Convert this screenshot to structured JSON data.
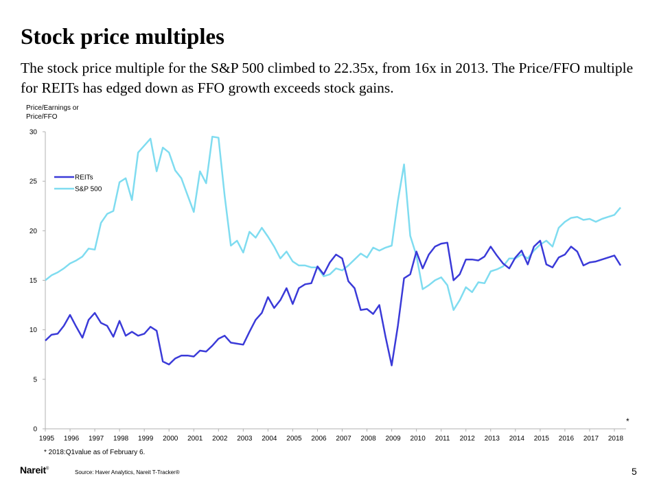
{
  "slide": {
    "title": "Stock price multiples",
    "subtitle": "The stock price multiple for the S&P 500 climbed to 22.35x, from 16x in 2013. The Price/FFO multiple for REITs has edged down as FFO growth exceeds stock gains.",
    "footnote": "* 2018:Q1value as of February 6.",
    "asterisk": "*",
    "logo": "Nareit",
    "logo_mark": "®",
    "source": "Source:  Haver Analytics, Nareit T-Tracker®",
    "page_number": "5"
  },
  "chart_data": {
    "type": "line",
    "ylabel": "Price/Earnings or Price/FFO",
    "ylim": [
      0,
      30
    ],
    "yticks": [
      0,
      5,
      10,
      15,
      20,
      25,
      30
    ],
    "xlim": [
      1995,
      2018.25
    ],
    "xticks": [
      1995,
      1996,
      1997,
      1998,
      1999,
      2000,
      2001,
      2002,
      2003,
      2004,
      2005,
      2006,
      2007,
      2008,
      2009,
      2010,
      2011,
      2012,
      2013,
      2014,
      2015,
      2016,
      2017,
      2018
    ],
    "legend_position": "top-left",
    "grid": false,
    "series": [
      {
        "name": "REITs",
        "color": "#3a3ad8",
        "points": [
          [
            1995,
            8.9
          ],
          [
            1995.25,
            9.5
          ],
          [
            1995.5,
            9.6
          ],
          [
            1995.75,
            10.4
          ],
          [
            1996,
            11.5
          ],
          [
            1996.25,
            10.3
          ],
          [
            1996.5,
            9.2
          ],
          [
            1996.75,
            11.0
          ],
          [
            1997,
            11.7
          ],
          [
            1997.25,
            10.7
          ],
          [
            1997.5,
            10.4
          ],
          [
            1997.75,
            9.3
          ],
          [
            1998,
            10.9
          ],
          [
            1998.25,
            9.4
          ],
          [
            1998.5,
            9.8
          ],
          [
            1998.75,
            9.4
          ],
          [
            1999,
            9.6
          ],
          [
            1999.25,
            10.3
          ],
          [
            1999.5,
            9.9
          ],
          [
            1999.75,
            6.8
          ],
          [
            2000,
            6.5
          ],
          [
            2000.25,
            7.1
          ],
          [
            2000.5,
            7.4
          ],
          [
            2000.75,
            7.4
          ],
          [
            2001,
            7.3
          ],
          [
            2001.25,
            7.9
          ],
          [
            2001.5,
            7.8
          ],
          [
            2001.75,
            8.4
          ],
          [
            2002,
            9.1
          ],
          [
            2002.25,
            9.4
          ],
          [
            2002.5,
            8.7
          ],
          [
            2002.75,
            8.6
          ],
          [
            2003,
            8.5
          ],
          [
            2003.25,
            9.8
          ],
          [
            2003.5,
            11.0
          ],
          [
            2003.75,
            11.7
          ],
          [
            2004,
            13.3
          ],
          [
            2004.25,
            12.2
          ],
          [
            2004.5,
            13.0
          ],
          [
            2004.75,
            14.2
          ],
          [
            2005,
            12.6
          ],
          [
            2005.25,
            14.2
          ],
          [
            2005.5,
            14.6
          ],
          [
            2005.75,
            14.7
          ],
          [
            2006,
            16.4
          ],
          [
            2006.25,
            15.6
          ],
          [
            2006.5,
            16.8
          ],
          [
            2006.75,
            17.6
          ],
          [
            2007,
            17.2
          ],
          [
            2007.25,
            14.9
          ],
          [
            2007.5,
            14.2
          ],
          [
            2007.75,
            12.0
          ],
          [
            2008,
            12.1
          ],
          [
            2008.25,
            11.6
          ],
          [
            2008.5,
            12.5
          ],
          [
            2008.75,
            9.3
          ],
          [
            2009,
            6.4
          ],
          [
            2009.25,
            10.4
          ],
          [
            2009.5,
            15.2
          ],
          [
            2009.75,
            15.6
          ],
          [
            2010,
            17.9
          ],
          [
            2010.25,
            16.2
          ],
          [
            2010.5,
            17.6
          ],
          [
            2010.75,
            18.4
          ],
          [
            2011,
            18.7
          ],
          [
            2011.25,
            18.8
          ],
          [
            2011.5,
            15.0
          ],
          [
            2011.75,
            15.6
          ],
          [
            2012,
            17.1
          ],
          [
            2012.25,
            17.1
          ],
          [
            2012.5,
            17.0
          ],
          [
            2012.75,
            17.4
          ],
          [
            2013,
            18.4
          ],
          [
            2013.25,
            17.5
          ],
          [
            2013.5,
            16.7
          ],
          [
            2013.75,
            16.2
          ],
          [
            2014,
            17.3
          ],
          [
            2014.25,
            18.0
          ],
          [
            2014.5,
            16.6
          ],
          [
            2014.75,
            18.4
          ],
          [
            2015,
            19.0
          ],
          [
            2015.25,
            16.6
          ],
          [
            2015.5,
            16.3
          ],
          [
            2015.75,
            17.3
          ],
          [
            2016,
            17.6
          ],
          [
            2016.25,
            18.4
          ],
          [
            2016.5,
            17.9
          ],
          [
            2016.75,
            16.5
          ],
          [
            2017,
            16.8
          ],
          [
            2017.25,
            16.9
          ],
          [
            2017.5,
            17.1
          ],
          [
            2017.75,
            17.3
          ],
          [
            2018,
            17.5
          ],
          [
            2018.25,
            16.5
          ]
        ]
      },
      {
        "name": "S&P 500",
        "color": "#7fdcf0",
        "points": [
          [
            1995,
            15.0
          ],
          [
            1995.25,
            15.5
          ],
          [
            1995.5,
            15.8
          ],
          [
            1995.75,
            16.2
          ],
          [
            1996,
            16.7
          ],
          [
            1996.25,
            17.0
          ],
          [
            1996.5,
            17.4
          ],
          [
            1996.75,
            18.2
          ],
          [
            1997,
            18.1
          ],
          [
            1997.25,
            20.8
          ],
          [
            1997.5,
            21.7
          ],
          [
            1997.75,
            22.0
          ],
          [
            1998,
            24.9
          ],
          [
            1998.25,
            25.3
          ],
          [
            1998.5,
            23.1
          ],
          [
            1998.75,
            27.9
          ],
          [
            1999,
            28.6
          ],
          [
            1999.25,
            29.3
          ],
          [
            1999.5,
            26.0
          ],
          [
            1999.75,
            28.4
          ],
          [
            2000,
            27.9
          ],
          [
            2000.25,
            26.1
          ],
          [
            2000.5,
            25.3
          ],
          [
            2000.75,
            23.6
          ],
          [
            2001,
            21.9
          ],
          [
            2001.25,
            26.0
          ],
          [
            2001.5,
            24.8
          ],
          [
            2001.75,
            29.5
          ],
          [
            2002,
            29.4
          ],
          [
            2002.25,
            23.5
          ],
          [
            2002.5,
            18.5
          ],
          [
            2002.75,
            19.0
          ],
          [
            2003,
            17.8
          ],
          [
            2003.25,
            19.9
          ],
          [
            2003.5,
            19.3
          ],
          [
            2003.75,
            20.3
          ],
          [
            2004,
            19.4
          ],
          [
            2004.25,
            18.4
          ],
          [
            2004.5,
            17.2
          ],
          [
            2004.75,
            17.9
          ],
          [
            2005,
            16.9
          ],
          [
            2005.25,
            16.5
          ],
          [
            2005.5,
            16.5
          ],
          [
            2005.75,
            16.3
          ],
          [
            2006,
            16.3
          ],
          [
            2006.25,
            15.4
          ],
          [
            2006.5,
            15.6
          ],
          [
            2006.75,
            16.2
          ],
          [
            2007,
            16.0
          ],
          [
            2007.25,
            16.5
          ],
          [
            2007.5,
            17.1
          ],
          [
            2007.75,
            17.7
          ],
          [
            2008,
            17.3
          ],
          [
            2008.25,
            18.3
          ],
          [
            2008.5,
            18.0
          ],
          [
            2008.75,
            18.3
          ],
          [
            2009,
            18.5
          ],
          [
            2009.25,
            23.0
          ],
          [
            2009.5,
            26.7
          ],
          [
            2009.75,
            19.5
          ],
          [
            2010,
            17.5
          ],
          [
            2010.25,
            14.1
          ],
          [
            2010.5,
            14.5
          ],
          [
            2010.75,
            15.0
          ],
          [
            2011,
            15.3
          ],
          [
            2011.25,
            14.5
          ],
          [
            2011.5,
            12.0
          ],
          [
            2011.75,
            13.0
          ],
          [
            2012,
            14.3
          ],
          [
            2012.25,
            13.8
          ],
          [
            2012.5,
            14.8
          ],
          [
            2012.75,
            14.7
          ],
          [
            2013,
            15.9
          ],
          [
            2013.25,
            16.1
          ],
          [
            2013.5,
            16.4
          ],
          [
            2013.75,
            17.2
          ],
          [
            2014,
            17.2
          ],
          [
            2014.25,
            17.6
          ],
          [
            2014.5,
            17.2
          ],
          [
            2014.75,
            18.0
          ],
          [
            2015,
            18.6
          ],
          [
            2015.25,
            19.0
          ],
          [
            2015.5,
            18.4
          ],
          [
            2015.75,
            20.3
          ],
          [
            2016,
            20.9
          ],
          [
            2016.25,
            21.3
          ],
          [
            2016.5,
            21.4
          ],
          [
            2016.75,
            21.1
          ],
          [
            2017,
            21.2
          ],
          [
            2017.25,
            20.9
          ],
          [
            2017.5,
            21.2
          ],
          [
            2017.75,
            21.4
          ],
          [
            2018,
            21.6
          ],
          [
            2018.25,
            22.35
          ]
        ]
      }
    ]
  }
}
